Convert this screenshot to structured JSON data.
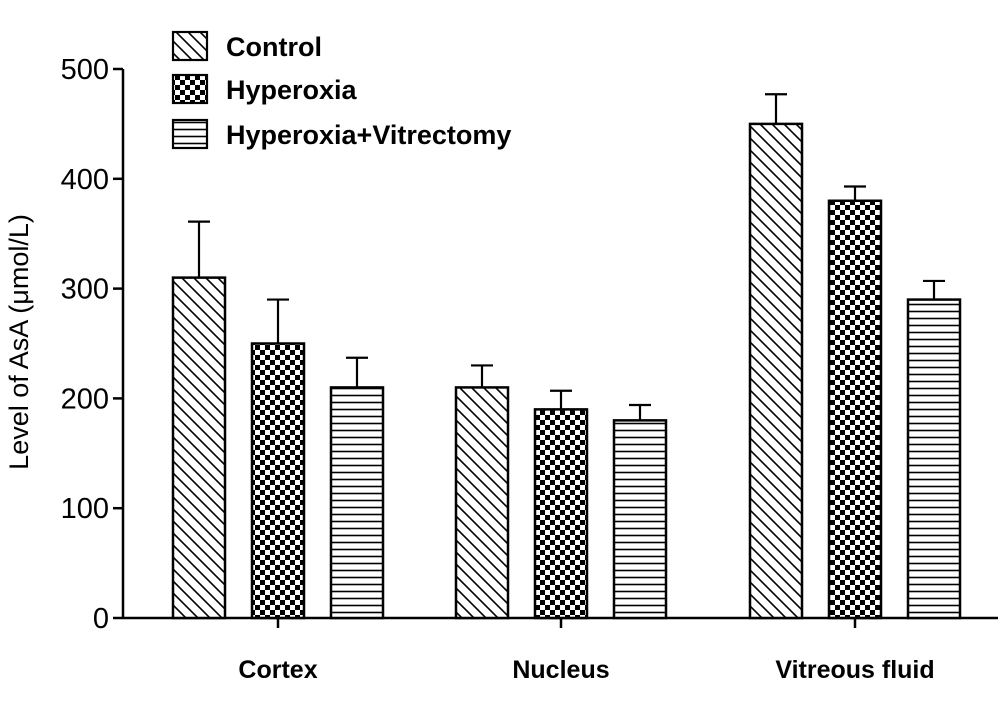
{
  "chart_data": {
    "type": "bar",
    "categories": [
      "Cortex",
      "Nucleus",
      "Vitreous fluid"
    ],
    "series": [
      {
        "name": "Control",
        "values": [
          310,
          210,
          450
        ],
        "errors": [
          51,
          20,
          27
        ],
        "pattern": "diagonal-hatch"
      },
      {
        "name": "Hyperoxia",
        "values": [
          250,
          190,
          380
        ],
        "errors": [
          40,
          17,
          13
        ],
        "pattern": "checkerboard"
      },
      {
        "name": "Hyperoxia+Vitrectomy",
        "values": [
          210,
          180,
          290
        ],
        "errors": [
          27,
          14,
          17
        ],
        "pattern": "horizontal-lines"
      }
    ],
    "title": "",
    "xlabel": "",
    "ylabel": "Level of AsA (μmol/L)",
    "ylim": [
      0,
      500
    ],
    "yticks": [
      0,
      100,
      200,
      300,
      400,
      500
    ],
    "grid": false,
    "legend_position": "top-left"
  }
}
